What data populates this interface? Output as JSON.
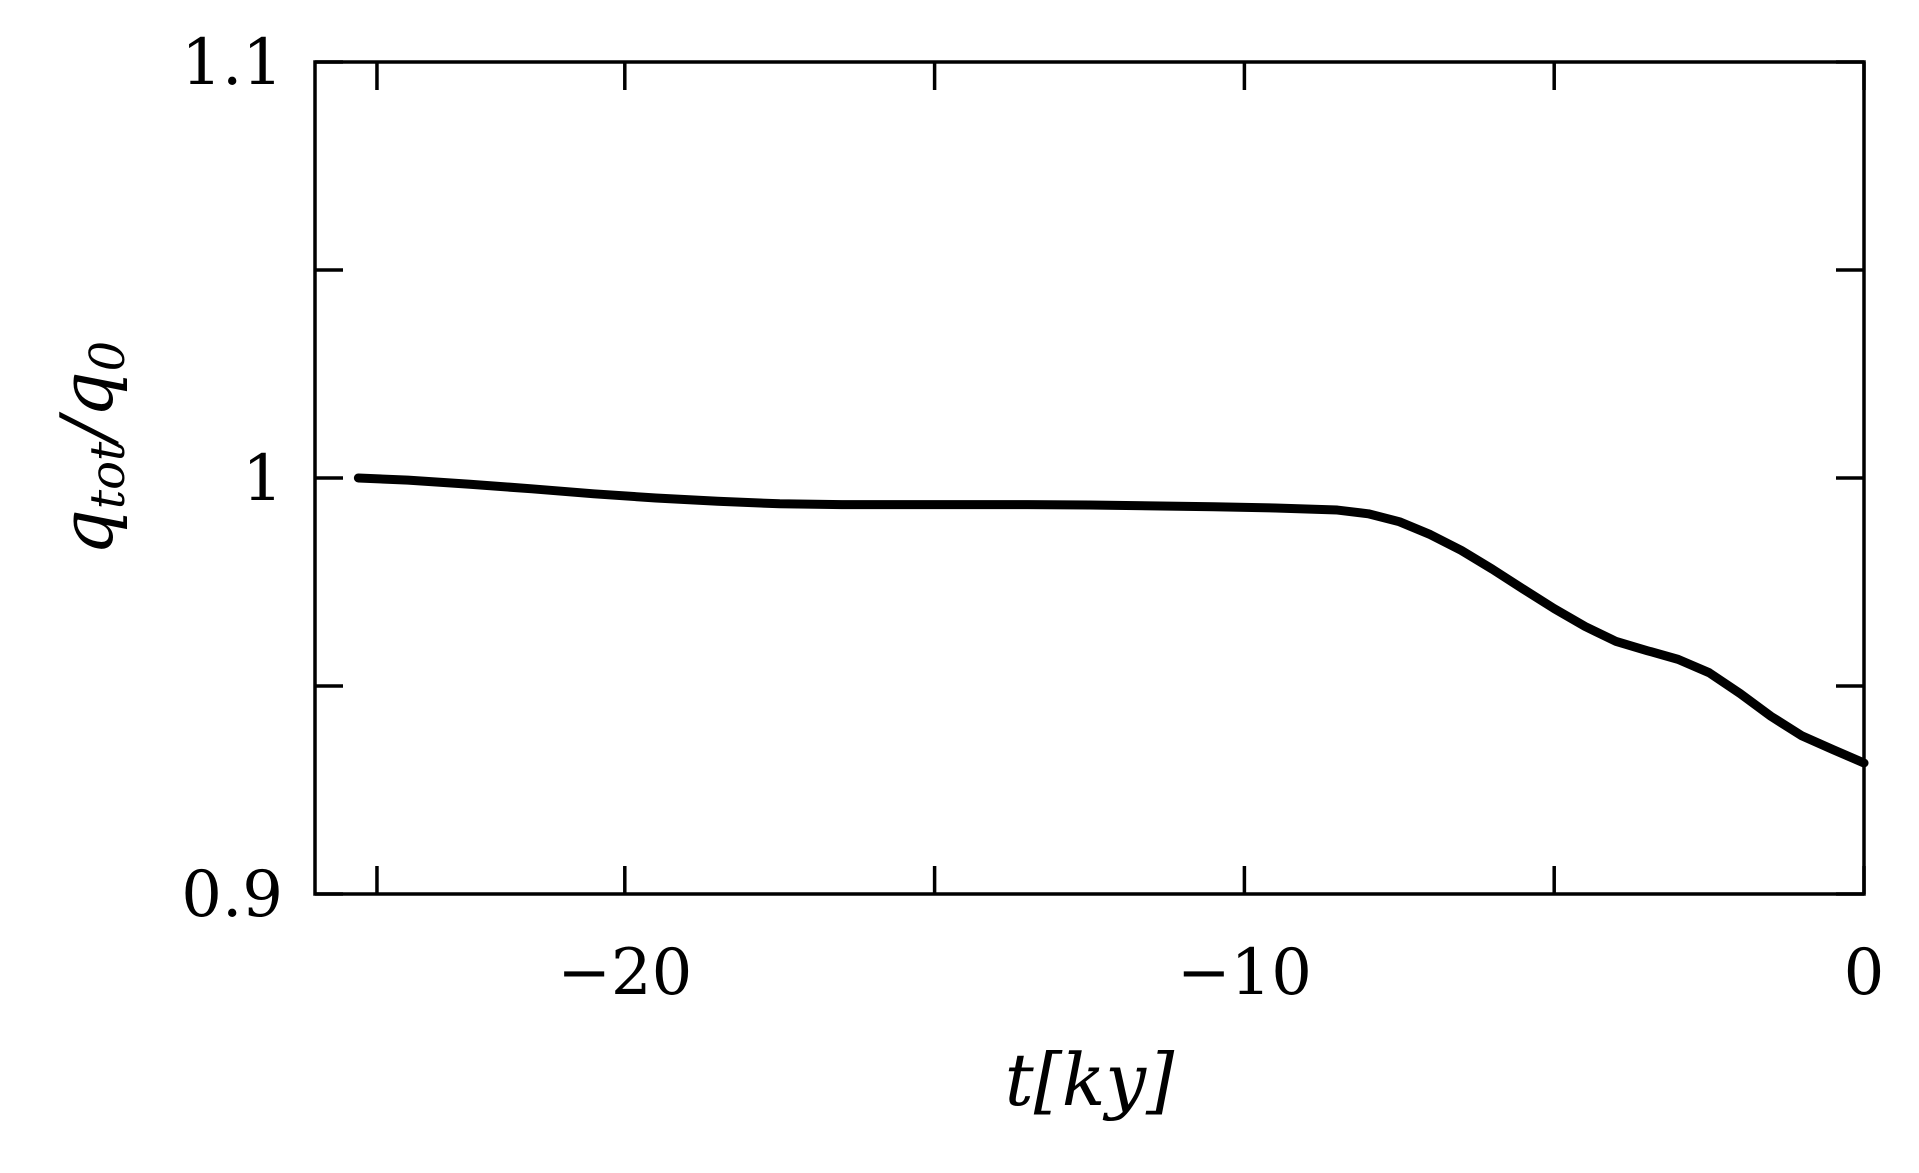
{
  "chart_data": {
    "type": "line",
    "xlabel": {
      "base": "t[ky]"
    },
    "ylabel": {
      "part1_base": "q",
      "part1_sub": "tot",
      "slash": "/",
      "part2_base": "q",
      "part2_sub": "0"
    },
    "xlim": [
      -25,
      0
    ],
    "ylim": [
      0.9,
      1.1
    ],
    "x_ticks_major": [
      -20,
      -10,
      0
    ],
    "x_tick_labels": [
      "−20",
      "−10",
      "0"
    ],
    "x_ticks_minor": [
      -24,
      -15,
      -5
    ],
    "y_ticks_major": [
      0.9,
      1.0,
      1.1
    ],
    "y_tick_labels": [
      "0.9",
      "1",
      "1.1"
    ],
    "y_ticks_minor": [
      0.95,
      1.05
    ],
    "grid": false,
    "line_color": "#000000",
    "series": [
      {
        "x": [
          -24.3,
          -23.5,
          -22.5,
          -21.5,
          -20.5,
          -19.5,
          -18.5,
          -17.5,
          -16.5,
          -15.5,
          -14.5,
          -13.5,
          -12.5,
          -11.5,
          -10.5,
          -9.5,
          -8.5,
          -8.0,
          -7.5,
          -7.0,
          -6.5,
          -6.0,
          -5.5,
          -5.0,
          -4.5,
          -4.0,
          -3.5,
          -3.0,
          -2.5,
          -2.0,
          -1.5,
          -1.0,
          -0.5,
          0.0
        ],
        "y": [
          1.0,
          0.9995,
          0.9985,
          0.9974,
          0.9962,
          0.9952,
          0.9944,
          0.9938,
          0.9936,
          0.9936,
          0.9936,
          0.9936,
          0.9935,
          0.9933,
          0.9931,
          0.9928,
          0.9923,
          0.9914,
          0.9895,
          0.9864,
          0.9826,
          0.9781,
          0.9733,
          0.9686,
          0.9643,
          0.9607,
          0.9585,
          0.9564,
          0.9532,
          0.9482,
          0.9427,
          0.938,
          0.9347,
          0.9315
        ]
      }
    ]
  }
}
